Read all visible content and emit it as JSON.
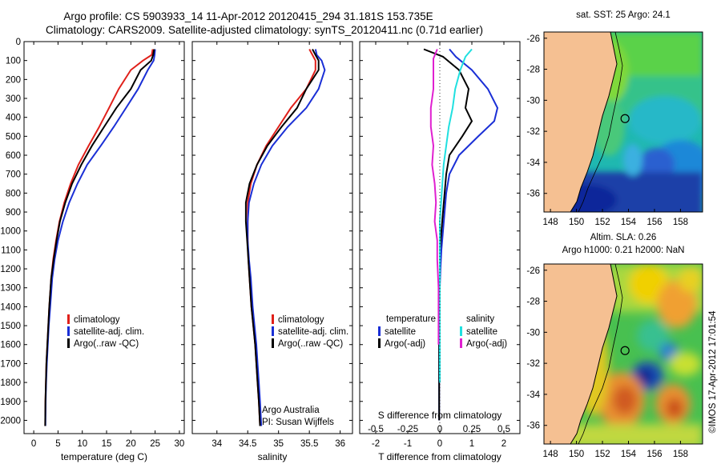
{
  "titles": {
    "line1": "Argo profile: CS 5903933_14 11-Apr-2012 20120415_294 31.181S 153.735E",
    "line2": "Climatology: CARS2009. Satellite-adjusted climatology: synTS_20120411.nc (0.71d earlier)"
  },
  "colors": {
    "climatology": "#e0201a",
    "satellite": "#1a2fd6",
    "argo": "#000000",
    "sat_salinity": "#20e0e0",
    "argo_salinity": "#e020d0"
  },
  "panel_texts": {
    "sst_title": "sat. SST: 25  Argo: 24.1",
    "sla_title_1": "Altim. SLA: 0.26",
    "sla_title_2": "Argo h1000: 0.21 h2000: NaN",
    "credit_1": "Argo Australia",
    "credit_2": "PI: Susan Wijffels",
    "imos_stamp": "©IMOS 17-Apr-2012 17:01:54",
    "s_diff_label": "S difference from climatology"
  },
  "chart_data": [
    {
      "id": "temperature",
      "type": "line",
      "xlabel": "temperature (deg C)",
      "xlim": [
        -2,
        31
      ],
      "xticks": [
        0,
        5,
        10,
        15,
        20,
        25,
        30
      ],
      "ylim": [
        2070,
        0
      ],
      "yticks": [
        0,
        100,
        200,
        300,
        400,
        500,
        600,
        700,
        800,
        900,
        1000,
        1100,
        1200,
        1300,
        1400,
        1500,
        1600,
        1700,
        1800,
        1900,
        2000
      ],
      "legend": [
        "climatology",
        "satellite-adj. clim.",
        "Argo(..raw -QC)"
      ],
      "series": [
        {
          "name": "climatology",
          "x": [
            24.5,
            24.3,
            22.5,
            20.0,
            17.5,
            15.5,
            13.5,
            11.3,
            9.2,
            7.6,
            6.3,
            5.3,
            4.6,
            4.0,
            3.6,
            3.2,
            3.0,
            2.8,
            2.6,
            2.5,
            2.4,
            2.35
          ],
          "y": [
            40,
            70,
            100,
            150,
            250,
            350,
            450,
            550,
            650,
            750,
            850,
            950,
            1050,
            1150,
            1250,
            1400,
            1500,
            1600,
            1700,
            1800,
            1900,
            2030
          ]
        },
        {
          "name": "satellite-adj. clim.",
          "x": [
            25.0,
            24.9,
            24.7,
            23.5,
            21.5,
            19.0,
            16.5,
            13.8,
            11.0,
            9.0,
            7.3,
            6.0,
            5.0,
            4.3,
            3.8,
            3.4,
            3.1,
            2.9,
            2.7,
            2.55,
            2.45,
            2.4
          ],
          "y": [
            40,
            70,
            100,
            150,
            250,
            350,
            450,
            550,
            650,
            750,
            850,
            950,
            1050,
            1150,
            1250,
            1400,
            1500,
            1600,
            1700,
            1800,
            1900,
            2030
          ]
        },
        {
          "name": "Argo(..raw -QC)",
          "x": [
            24.8,
            24.6,
            24.2,
            22.0,
            20.0,
            17.0,
            14.5,
            12.0,
            9.8,
            7.9,
            6.5,
            5.4,
            4.7,
            4.1,
            3.6,
            3.2,
            3.0,
            2.8,
            2.6,
            2.5,
            2.4,
            2.35
          ],
          "y": [
            40,
            70,
            100,
            150,
            250,
            350,
            450,
            550,
            650,
            750,
            850,
            950,
            1050,
            1150,
            1250,
            1400,
            1500,
            1600,
            1700,
            1800,
            1900,
            2030
          ]
        }
      ]
    },
    {
      "id": "salinity",
      "type": "line",
      "xlabel": "salinity",
      "xlim": [
        33.6,
        36.2
      ],
      "xticks": [
        34,
        34.5,
        35,
        35.5,
        36
      ],
      "ylim": [
        2070,
        0
      ],
      "legend": [
        "climatology",
        "satellite-adj. clim.",
        "Argo(..raw -QC)"
      ],
      "series": [
        {
          "name": "climatology",
          "x": [
            35.5,
            35.55,
            35.6,
            35.6,
            35.45,
            35.2,
            35.0,
            34.8,
            34.65,
            34.55,
            34.5,
            34.5,
            34.5,
            34.51,
            34.53,
            34.56,
            34.59,
            34.62,
            34.64,
            34.66,
            34.68,
            34.7
          ],
          "y": [
            40,
            70,
            100,
            150,
            250,
            350,
            450,
            550,
            650,
            750,
            850,
            950,
            1050,
            1150,
            1250,
            1400,
            1500,
            1600,
            1700,
            1800,
            1900,
            2030
          ]
        },
        {
          "name": "satellite-adj. clim.",
          "x": [
            35.6,
            35.62,
            35.7,
            35.75,
            35.65,
            35.45,
            35.15,
            34.9,
            34.72,
            34.6,
            34.52,
            34.5,
            34.5,
            34.52,
            34.55,
            34.58,
            34.61,
            34.64,
            34.66,
            34.68,
            34.7,
            34.72
          ],
          "y": [
            40,
            70,
            100,
            150,
            250,
            350,
            450,
            550,
            650,
            750,
            850,
            950,
            1050,
            1150,
            1250,
            1400,
            1500,
            1600,
            1700,
            1800,
            1900,
            2030
          ]
        },
        {
          "name": "Argo(..raw -QC)",
          "x": [
            35.55,
            35.6,
            35.65,
            35.65,
            35.45,
            35.3,
            35.05,
            34.82,
            34.65,
            34.53,
            34.47,
            34.47,
            34.49,
            34.51,
            34.53,
            34.56,
            34.59,
            34.62,
            34.64,
            34.66,
            34.68,
            34.7
          ],
          "y": [
            40,
            70,
            100,
            150,
            250,
            350,
            450,
            550,
            650,
            750,
            850,
            950,
            1050,
            1150,
            1250,
            1400,
            1500,
            1600,
            1700,
            1800,
            1900,
            2030
          ]
        }
      ]
    },
    {
      "id": "difference",
      "type": "line",
      "xlabel": "T difference from climatology",
      "xlim": [
        -2.5,
        2.5
      ],
      "xticks": [
        -2,
        -1,
        0,
        1,
        2
      ],
      "s_xticks": [
        -0.5,
        -0.25,
        0,
        0.25,
        0.5
      ],
      "s_scale": 4,
      "ylim": [
        2070,
        0
      ],
      "legend_groups": [
        "temperature",
        "salinity"
      ],
      "legend": {
        "temperature": [
          "satellite",
          "Argo(-adj)"
        ],
        "salinity": [
          "satellite",
          "Argo(-adj)"
        ]
      },
      "series": [
        {
          "name": "temperature satellite",
          "group": "temperature",
          "x": [
            0.3,
            0.5,
            1.0,
            1.5,
            1.8,
            1.7,
            1.2,
            0.6,
            0.3,
            0.2,
            0.15,
            0.1,
            0.05,
            0.02,
            0.0,
            -0.02,
            -0.02,
            -0.02,
            -0.02,
            -0.02
          ],
          "y": [
            40,
            80,
            150,
            250,
            350,
            420,
            500,
            600,
            700,
            800,
            900,
            1000,
            1100,
            1200,
            1300,
            1500,
            1600,
            1700,
            1800,
            2000
          ]
        },
        {
          "name": "temperature Argo(-adj)",
          "group": "temperature",
          "x": [
            -0.5,
            0.1,
            0.6,
            0.9,
            0.8,
            1.0,
            0.7,
            0.3,
            0.2,
            0.15,
            0.1,
            0.05,
            0.0,
            0.0,
            0.0,
            -0.02,
            -0.02,
            -0.02,
            -0.02,
            -0.02
          ],
          "y": [
            40,
            80,
            150,
            250,
            350,
            420,
            500,
            600,
            700,
            800,
            900,
            1000,
            1100,
            1200,
            1300,
            1500,
            1600,
            1700,
            1800,
            2000
          ]
        },
        {
          "name": "salinity satellite",
          "group": "salinity",
          "x": [
            0.25,
            0.2,
            0.16,
            0.12,
            0.1,
            0.07,
            0.05,
            0.03,
            0.02,
            0.01,
            0.0,
            0.0,
            0.0,
            0.0,
            0.0,
            0.0,
            0.0,
            0.0,
            0.0
          ],
          "y": [
            40,
            80,
            150,
            250,
            350,
            450,
            550,
            650,
            750,
            850,
            950,
            1050,
            1150,
            1250,
            1400,
            1500,
            1600,
            1700,
            1800
          ]
        },
        {
          "name": "salinity Argo(-adj)",
          "group": "salinity",
          "x": [
            -0.02,
            -0.05,
            -0.05,
            -0.05,
            -0.07,
            -0.07,
            -0.05,
            -0.06,
            -0.04,
            -0.03,
            -0.04,
            -0.02,
            -0.02,
            -0.01,
            -0.01,
            -0.01
          ],
          "y": [
            40,
            90,
            150,
            250,
            350,
            450,
            550,
            650,
            750,
            850,
            950,
            1050,
            1150,
            1300,
            1450,
            1600
          ]
        }
      ]
    },
    {
      "id": "sst_map",
      "type": "heatmap",
      "xlim": [
        147.5,
        159.7
      ],
      "ylim": [
        -37.2,
        -25.6
      ],
      "xticks": [
        148,
        150,
        152,
        154,
        156,
        158
      ],
      "yticks": [
        -26,
        -28,
        -30,
        -32,
        -34,
        -36
      ],
      "marker": {
        "lon": 153.735,
        "lat": -31.181
      }
    },
    {
      "id": "sla_map",
      "type": "heatmap",
      "xlim": [
        147.5,
        159.7
      ],
      "ylim": [
        -37.2,
        -25.6
      ],
      "xticks": [
        148,
        150,
        152,
        154,
        156,
        158
      ],
      "yticks": [
        -26,
        -28,
        -30,
        -32,
        -34,
        -36
      ],
      "marker": {
        "lon": 153.735,
        "lat": -31.181
      }
    }
  ]
}
